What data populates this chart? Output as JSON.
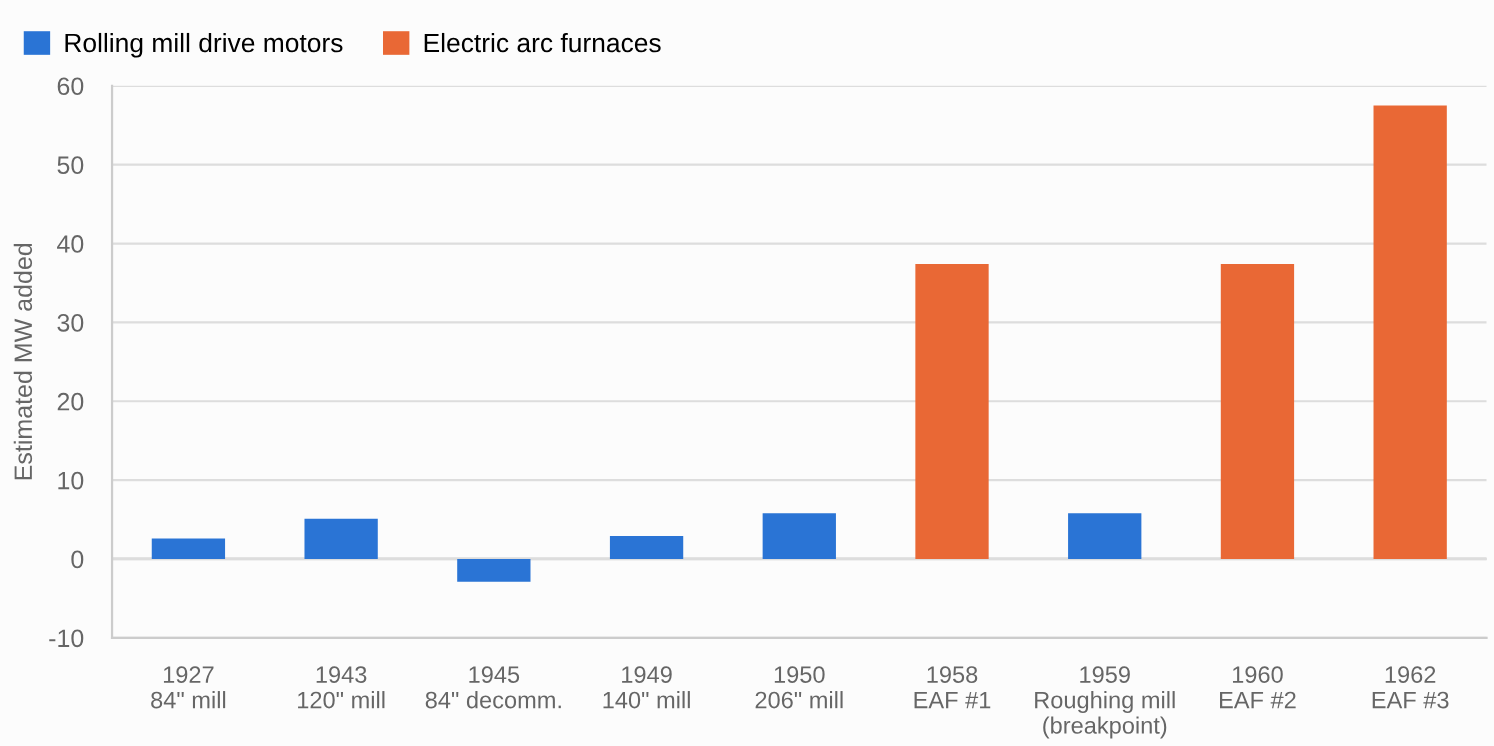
{
  "chart_data": {
    "type": "bar",
    "ylabel": "Estimated MW added",
    "categories": [
      "1927\n84\" mill",
      "1943\n120\" mill",
      "1945\n84\" decomm.",
      "1949\n140\" mill",
      "1950\n206\" mill",
      "1958\nEAF #1",
      "1959\nRoughing mill\n(breakpoint)",
      "1960\nEAF #2",
      "1962\nEAF #3"
    ],
    "series": [
      {
        "name": "Rolling mill drive motors",
        "color": "#2a74d5",
        "values": [
          2.6,
          5.1,
          -2.9,
          2.9,
          5.8,
          null,
          5.8,
          null,
          null
        ]
      },
      {
        "name": "Electric arc furnaces",
        "color": "#e96835",
        "values": [
          null,
          null,
          null,
          null,
          null,
          37.4,
          null,
          37.4,
          57.5
        ]
      }
    ],
    "stacked": true,
    "ylim": [
      -10,
      60
    ],
    "yticks": [
      -10,
      0,
      10,
      20,
      30,
      40,
      50,
      60
    ],
    "grid": "y",
    "legend": "top left"
  }
}
